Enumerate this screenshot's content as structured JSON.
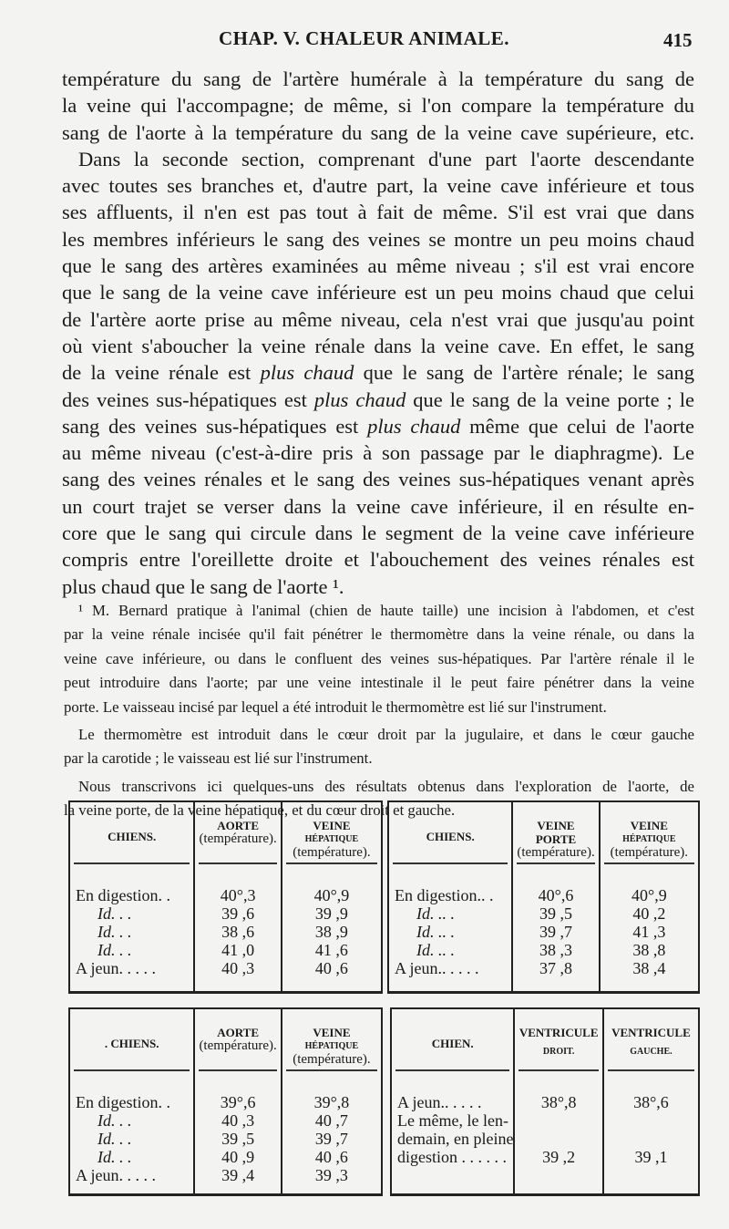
{
  "header": {
    "title": "CHAP. V. CHALEUR ANIMALE.",
    "page_number": "415"
  },
  "main_lines": [
    [
      "température du sang de l'artère humérale à la température du sang de"
    ],
    [
      "la veine qui l'accompagne; de même, si l'on compare la température du"
    ],
    [
      "sang de l'aorte à la température du sang de la veine cave supérieure, etc."
    ],
    [
      "Dans la seconde section, comprenant d'une part l'aorte descendante"
    ],
    [
      "avec toutes ses branches et, d'autre part, la veine cave inférieure et tous"
    ],
    [
      "ses affluents, il n'en est pas tout à fait de même. S'il est vrai que dans"
    ],
    [
      "les membres inférieurs le sang des veines se montre un peu moins chaud"
    ],
    [
      "que le sang des artères examinées au même niveau ; s'il est vrai encore"
    ],
    [
      "que le sang de la veine cave inférieure est un peu moins chaud que celui"
    ],
    [
      "de l'artère aorte prise au même niveau, cela n'est vrai que jusqu'au point"
    ],
    [
      "où vient s'aboucher la veine rénale dans la veine cave. En effet, le sang"
    ],
    [
      "de la veine rénale est ",
      "plus chaud",
      " que le sang de l'artère rénale; le sang"
    ],
    [
      "des veines sus-hépatiques est ",
      "plus chaud",
      " que le sang de la veine porte ; le"
    ],
    [
      "sang des veines sus-hépatiques est ",
      "plus chaud",
      " même que celui de l'aorte"
    ],
    [
      "au même niveau (c'est-à-dire pris à son passage par le diaphragme). Le"
    ],
    [
      "sang des veines rénales et le sang des veines sus-hépatiques venant après"
    ],
    [
      "un court trajet se verser dans la veine cave inférieure, il en résulte en-"
    ],
    [
      "core que le sang qui circule dans le segment de la veine cave inférieure"
    ],
    [
      "compris entre l'oreillette droite et l'abouchement des veines rénales est"
    ],
    [
      "plus chaud que le sang de l'aorte ¹."
    ]
  ],
  "footnote_lines": [
    "¹ M. Bernard pratique à l'animal (chien de haute taille) une incision à l'abdomen, et c'est",
    "par la veine rénale incisée qu'il fait pénétrer le thermomètre dans la veine rénale, ou dans la",
    "veine cave inférieure, ou dans le confluent des veines sus-hépatiques. Par l'artère rénale il le",
    "peut introduire dans l'aorte; par une veine intestinale il le peut faire pénétrer dans la veine",
    "porte. Le vaisseau incisé par lequel a été introduit le thermomètre est lié sur l'instrument.",
    "Le thermomètre est introduit dans le cœur droit par la jugulaire, et dans le cœur gauche",
    "par la carotide ; le vaisseau est lié sur l'instrument.",
    "Nous transcrivons ici quelques-uns des résultats obtenus dans l'exploration de l'aorte, de",
    "la veine porte, de la veine hépatique, et du cœur droit et gauche."
  ],
  "tables": [
    {
      "headers": [
        {
          "top": "CHIENS.",
          "sub": ""
        },
        {
          "top": "AORTE",
          "sub": "(température)."
        },
        {
          "top": "VEINE",
          "small": "HÉPATIQUE",
          "sub": "(température)."
        }
      ],
      "labels": [
        "En digestion. .",
        "Id.  . .",
        "Id.  . .",
        "Id.  . .",
        "A jeun. . . . ."
      ],
      "columns": [
        [
          "40°,3",
          "39 ,6",
          "38 ,6",
          "41 ,0",
          "40 ,3"
        ],
        [
          "40°,9",
          "39 ,9",
          "38 ,9",
          "41 ,6",
          "40 ,6"
        ]
      ]
    },
    {
      "headers": [
        {
          "top": "CHIENS.",
          "sub": ""
        },
        {
          "top": "VEINE PORTE",
          "sub": "(température)."
        },
        {
          "top": "VEINE",
          "small": "HÉPATIQUE",
          "sub": "(température)."
        }
      ],
      "labels": [
        "En digestion.. .",
        "Id.  .. .",
        "Id.  .. .",
        "Id.  .. .",
        "A jeun.. . . . ."
      ],
      "columns": [
        [
          "40°,6",
          "39 ,5",
          "39 ,7",
          "38 ,3",
          "37 ,8"
        ],
        [
          "40°,9",
          "40 ,2",
          "41 ,3",
          "38 ,8",
          "38 ,4"
        ]
      ]
    },
    {
      "headers": [
        {
          "top": ". CHIENS.",
          "sub": ""
        },
        {
          "top": "AORTE",
          "sub": "(température)."
        },
        {
          "top": "VEINE",
          "small": "HÉPATIQUE",
          "sub": "(température)."
        }
      ],
      "labels": [
        "En digestion. .",
        "Id.  . .",
        "Id.  . .",
        "Id.  . .",
        "A jeun. . . . ."
      ],
      "columns": [
        [
          "39°,6",
          "40 ,3",
          "39 ,5",
          "40 ,9",
          "39 ,4"
        ],
        [
          "39°,8",
          "40 ,7",
          "39 ,7",
          "40 ,6",
          "39 ,3"
        ]
      ]
    },
    {
      "headers": [
        {
          "top": "CHIEN.",
          "sub": ""
        },
        {
          "top": "VENTRICULE",
          "small": "DROIT."
        },
        {
          "top": "VENTRICULE",
          "small": "GAUCHE."
        }
      ],
      "labels": [
        "A jeun.. . . . .",
        "Le même, le len-",
        "demain, en pleine",
        "digestion . . . . . ."
      ],
      "columns": [
        [
          "38°,8",
          "",
          "",
          "39 ,2"
        ],
        [
          "38°,6",
          "",
          "",
          "39 ,1"
        ]
      ]
    }
  ]
}
